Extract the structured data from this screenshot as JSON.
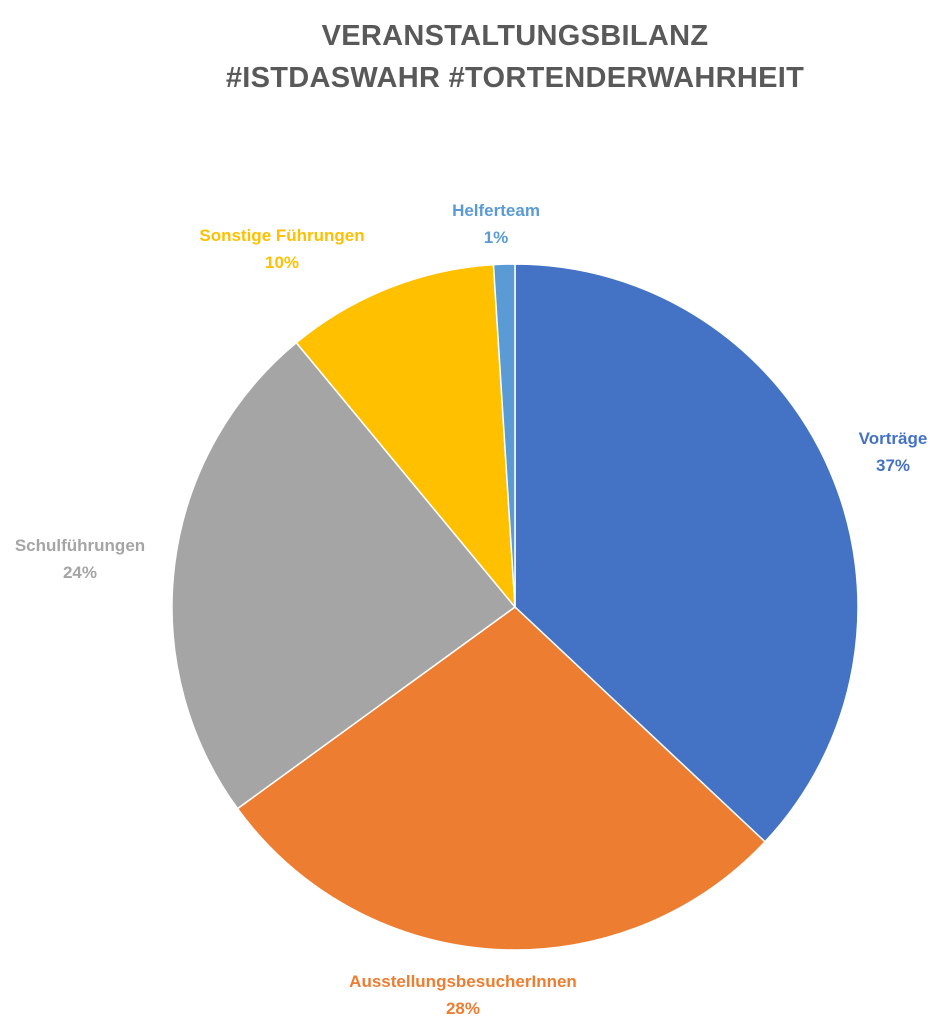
{
  "chart_data": {
    "type": "pie",
    "title": [
      "VERANSTALTUNGSBILANZ",
      "#ISTDASWAHR #TORTENDERWAHRHEIT"
    ],
    "slices": [
      {
        "label": "Vorträge",
        "value": 37,
        "value_label": "37%",
        "color": "#4472C4"
      },
      {
        "label": "AusstellungsbesucherInnen",
        "value": 28,
        "value_label": "28%",
        "color": "#ED7D31"
      },
      {
        "label": "Schulführungen",
        "value": 24,
        "value_label": "24%",
        "color": "#A5A5A5"
      },
      {
        "label": "Sonstige Führungen",
        "value": 10,
        "value_label": "10%",
        "color": "#FFC000"
      },
      {
        "label": "Helferteam",
        "value": 1,
        "value_label": "1%",
        "color": "#5B9BD5"
      }
    ],
    "start_angle": "12 o'clock",
    "direction": "clockwise",
    "legend": "none"
  }
}
